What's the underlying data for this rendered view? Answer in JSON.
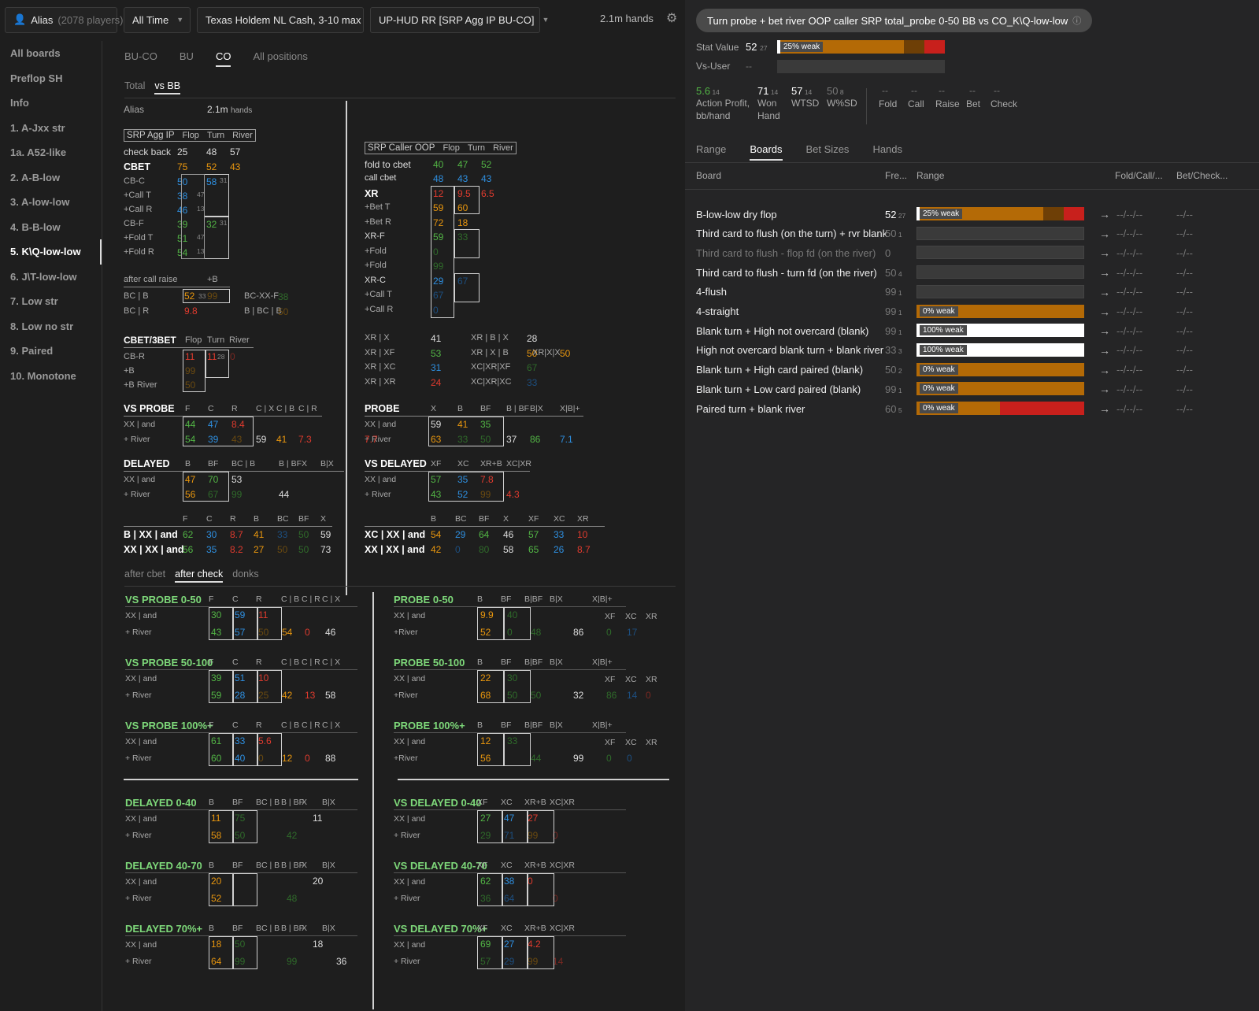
{
  "topbar": {
    "user_label": "Alias",
    "user_count": "(2078 players)",
    "time": "All Time",
    "game": "Texas Holdem NL Cash, 3-10 max",
    "hud": "UP-HUD RR [SRP Agg IP BU-CO]",
    "hands": "2.1m hands"
  },
  "sidebar": [
    "All boards",
    "Preflop SH",
    "Info",
    "1. A-Jxx str",
    "1a. A52-like",
    "2. A-B-low",
    "3. A-low-low",
    "4. B-B-low",
    "5. K\\Q-low-low",
    "6. J\\T-low-low",
    "7. Low str",
    "8. Low no str",
    "9. Paired",
    "10. Monotone"
  ],
  "tabs_pos": [
    "BU-CO",
    "BU",
    "CO",
    "All positions"
  ],
  "tabs_opp": [
    "Total",
    "vs BB"
  ],
  "info": {
    "alias": "Alias",
    "hands": "2.1m",
    "hands_unit": "hands"
  },
  "srp_ip": {
    "header": [
      "SRP Agg IP",
      "Flop",
      "Turn",
      "River"
    ],
    "checkback": [
      "check back",
      "25",
      "48",
      "57"
    ],
    "cbet": [
      "CBET",
      "75",
      "52",
      "43"
    ],
    "rows": [
      [
        "CB-C",
        "50",
        "58",
        "31"
      ],
      [
        "+Call T",
        "38",
        "47",
        ""
      ],
      [
        "+Call R",
        "46",
        "13",
        ""
      ],
      [
        "CB-F",
        "39",
        "32",
        "31"
      ],
      [
        "+Fold T",
        "51",
        "47",
        ""
      ],
      [
        "+Fold R",
        "54",
        "13",
        ""
      ]
    ]
  },
  "after_call": {
    "title": "after call raise",
    "col": "+B",
    "r1": [
      "BC | B",
      "52",
      "33",
      "99"
    ],
    "r1b": [
      "BC-XX-F",
      "38"
    ],
    "r2": [
      "BC | R",
      "9.8"
    ],
    "r2b": [
      "B | BC | B",
      "50"
    ]
  },
  "cbet3": {
    "header": [
      "CBET/3BET",
      "Flop",
      "Turn",
      "River"
    ],
    "rows": [
      [
        "CB-R",
        "11",
        "11",
        "28"
      ],
      [
        "+B",
        "99",
        ""
      ],
      [
        "+B River",
        "50",
        ""
      ]
    ]
  },
  "srp_oop": {
    "header": [
      "SRP Caller OOP",
      "Flop",
      "Turn",
      "River"
    ],
    "fold": [
      "fold to cbet",
      "40",
      "47",
      "52"
    ],
    "call": [
      "call cbet",
      "48",
      "43",
      "43"
    ],
    "xr": [
      "XR",
      "12",
      "9.5",
      "6.5"
    ],
    "rows": [
      [
        "+Bet T",
        "59",
        "60"
      ],
      [
        "+Bet R",
        "72",
        "18"
      ],
      [
        "XR-F",
        "59",
        "33"
      ],
      [
        "+Fold",
        "0",
        ""
      ],
      [
        "+Fold",
        "99",
        ""
      ],
      [
        "XR-C",
        "29",
        "67"
      ],
      [
        "+Call T",
        "67",
        ""
      ],
      [
        "+Call R",
        "0",
        ""
      ]
    ]
  },
  "xr_rows": [
    [
      "XR | X",
      "41",
      "XR | B | X",
      "28"
    ],
    [
      "XR | XF",
      "53",
      "XR | X | B",
      "50",
      "XR|X|X",
      "50"
    ],
    [
      "XR | XC",
      "31",
      "XC|XR|XF",
      "67"
    ],
    [
      "XR | XR",
      "24",
      "XC|XR|XC",
      "33"
    ]
  ],
  "vs_probe": {
    "header": [
      "VS PROBE",
      "F",
      "C",
      "R",
      "C | X",
      "C | B",
      "C | R"
    ],
    "r1": [
      "XX | and",
      "44",
      "47",
      "8.4"
    ],
    "r2": [
      "+ River",
      "54",
      "39",
      "43",
      "59",
      "41",
      "7.3"
    ]
  },
  "probe": {
    "header": [
      "PROBE",
      "X",
      "B",
      "BF",
      "B | BF",
      "B|X",
      "X|B|+"
    ],
    "r1": [
      "XX | and",
      "59",
      "41",
      "35"
    ],
    "r2": [
      "+ River",
      "63",
      "33",
      "50",
      "37",
      "86",
      "7.1",
      "7.7"
    ],
    "sub": [
      "XF",
      "XC",
      "XR"
    ]
  },
  "delayed": {
    "header": [
      "DELAYED",
      "B",
      "BF",
      "BC | B",
      "B | BF",
      "X",
      "B|X"
    ],
    "r1": [
      "XX | and",
      "47",
      "70",
      "53"
    ],
    "r2": [
      "+ River",
      "56",
      "67",
      "99",
      "44"
    ]
  },
  "vs_delayed": {
    "header": [
      "VS DELAYED",
      "XF",
      "XC",
      "XR+B",
      "XC|XR"
    ],
    "r1": [
      "XX | and",
      "57",
      "35",
      "7.8"
    ],
    "r2": [
      "+ River",
      "43",
      "52",
      "99",
      "4.3"
    ]
  },
  "bxx": {
    "header": [
      "F",
      "C",
      "R",
      "B",
      "BC",
      "BF",
      "X"
    ],
    "r1": [
      "B | XX | and",
      "62",
      "30",
      "8.7",
      "41",
      "33",
      "50",
      "59"
    ],
    "r2": [
      "XX | XX | and",
      "56",
      "35",
      "8.2",
      "27",
      "50",
      "50",
      "73"
    ]
  },
  "xcxx": {
    "header": [
      "B",
      "BC",
      "BF",
      "X",
      "XF",
      "XC",
      "XR"
    ],
    "r1": [
      "XC | XX | and",
      "54",
      "29",
      "64",
      "46",
      "57",
      "33",
      "10"
    ],
    "r2": [
      "XX | XX | and",
      "42",
      "0",
      "80",
      "58",
      "65",
      "26",
      "8.7"
    ]
  },
  "tabs_after": [
    "after cbet",
    "after check",
    "donks"
  ],
  "after_check": {
    "vs_probe": [
      {
        "title": "VS PROBE 0-50",
        "r1": [
          "30",
          "59",
          "11"
        ],
        "r2": [
          "43",
          "57",
          "50",
          "54",
          "0",
          "46"
        ]
      },
      {
        "title": "VS PROBE 50-100",
        "r1": [
          "39",
          "51",
          "10"
        ],
        "r2": [
          "59",
          "28",
          "25",
          "42",
          "13",
          "58"
        ]
      },
      {
        "title": "VS PROBE 100%+",
        "r1": [
          "61",
          "33",
          "5.6"
        ],
        "r2": [
          "60",
          "40",
          "0",
          "12",
          "0",
          "88"
        ]
      }
    ],
    "probe": [
      {
        "title": "PROBE 0-50",
        "r1": [
          "9.9",
          "40"
        ],
        "r2": [
          "52",
          "0",
          "48",
          "86",
          "0",
          "17"
        ]
      },
      {
        "title": "PROBE 50-100",
        "r1": [
          "22",
          "30"
        ],
        "r2": [
          "68",
          "50",
          "50",
          "32",
          "86",
          "14",
          "0"
        ]
      },
      {
        "title": "PROBE 100%+",
        "r1": [
          "12",
          "33"
        ],
        "r2": [
          "56",
          "",
          "44",
          "99",
          "0",
          "0"
        ]
      }
    ],
    "delayed": [
      {
        "title": "DELAYED 0-40",
        "r1": [
          "11",
          "75",
          "11"
        ],
        "r2": [
          "58",
          "50",
          "42"
        ]
      },
      {
        "title": "DELAYED 40-70",
        "r1": [
          "20",
          "",
          "20"
        ],
        "r2": [
          "52",
          "",
          "48"
        ]
      },
      {
        "title": "DELAYED 70%+",
        "r1": [
          "18",
          "50",
          "18"
        ],
        "r2": [
          "64",
          "99",
          "99",
          "36"
        ]
      }
    ],
    "vs_delayed": [
      {
        "title": "VS DELAYED 0-40",
        "r1": [
          "27",
          "47",
          "27"
        ],
        "r2": [
          "29",
          "71",
          "99",
          "0"
        ]
      },
      {
        "title": "VS DELAYED 40-70",
        "r1": [
          "62",
          "38",
          "0"
        ],
        "r2": [
          "36",
          "64",
          "",
          "0"
        ]
      },
      {
        "title": "VS DELAYED 70%+",
        "r1": [
          "69",
          "27",
          "4.2"
        ],
        "r2": [
          "57",
          "29",
          "99",
          "14"
        ]
      }
    ],
    "vp_header": [
      "F",
      "C",
      "R",
      "C | B",
      "C | R",
      "C | X"
    ],
    "p_header": [
      "B",
      "BF",
      "B|BF",
      "B|X",
      "X|B|+"
    ],
    "d_header": [
      "B",
      "BF",
      "BC | B",
      "B | BF",
      "X",
      "B|X"
    ],
    "vd_header": [
      "XF",
      "XC",
      "XR+B",
      "XC|XR"
    ],
    "row1": "XX | and",
    "row2": "+ River",
    "row2p": "+River",
    "sub": [
      "XF",
      "XC",
      "XR"
    ]
  },
  "right": {
    "title": "Turn probe + bet river OOP caller SRP total_probe 0-50 BB vs CO_K\\Q-low-low",
    "stat_label": "Stat Value",
    "stat_value": "52",
    "stat_sub": "27",
    "stat_tag": "25% weak",
    "vs_user_label": "Vs-User",
    "vs_user_value": "--",
    "metrics": [
      {
        "v": "5.6",
        "s": "14",
        "l": "Action Profit, bb/hand"
      },
      {
        "v": "71",
        "s": "14",
        "l": "Won Hand"
      },
      {
        "v": "57",
        "s": "14",
        "l": "WTSD"
      },
      {
        "v": "50",
        "s": "8",
        "l": "W%SD"
      }
    ],
    "metrics2": [
      "Fold",
      "Call",
      "Raise",
      "Bet",
      "Check"
    ],
    "dash": "--",
    "tabs": [
      "Range",
      "Boards",
      "Bet Sizes",
      "Hands"
    ],
    "cols": [
      "Board",
      "Fre...",
      "Range",
      "Fold/Call/...",
      "Bet/Check..."
    ],
    "rows": [
      {
        "name": "B-low-low dry flop",
        "f": "52",
        "s": "27",
        "tag": "25% weak",
        "fill": "mixed"
      },
      {
        "name": "Third card to flush (on the turn) + rvr blank",
        "f": "50",
        "s": "1",
        "tag": "",
        "fill": "none"
      },
      {
        "name": "Third card to flush - flop fd (on the river)",
        "f": "0",
        "s": "",
        "tag": "",
        "fill": "none",
        "dim": true
      },
      {
        "name": "Third card to flush - turn fd (on the river)",
        "f": "50",
        "s": "4",
        "tag": "",
        "fill": "none"
      },
      {
        "name": "4-flush",
        "f": "99",
        "s": "1",
        "tag": "",
        "fill": "none"
      },
      {
        "name": "4-straight",
        "f": "99",
        "s": "1",
        "tag": "0% weak",
        "fill": "orange"
      },
      {
        "name": "Blank turn + High not overcard (blank)",
        "f": "99",
        "s": "1",
        "tag": "100% weak",
        "fill": "white"
      },
      {
        "name": "High not overcard blank turn + blank river",
        "f": "33",
        "s": "3",
        "tag": "100% weak",
        "fill": "white"
      },
      {
        "name": "Blank turn + High card paired (blank)",
        "f": "50",
        "s": "2",
        "tag": "0% weak",
        "fill": "orange"
      },
      {
        "name": "Blank turn + Low card paired (blank)",
        "f": "99",
        "s": "1",
        "tag": "0% weak",
        "fill": "orange"
      },
      {
        "name": "Paired turn + blank river",
        "f": "60",
        "s": "5",
        "tag": "0% weak",
        "fill": "orangered"
      }
    ],
    "fcr": "--/--/--",
    "bc": "--/--",
    "arrow": "→"
  },
  "colors": {
    "green": "#52b545",
    "orange": "#e8960e",
    "blue": "#2e8fe0",
    "red": "#e03b2e",
    "bar_orange": "#b46a06",
    "bar_dark": "#6e3f06",
    "bar_red": "#c8201c"
  }
}
